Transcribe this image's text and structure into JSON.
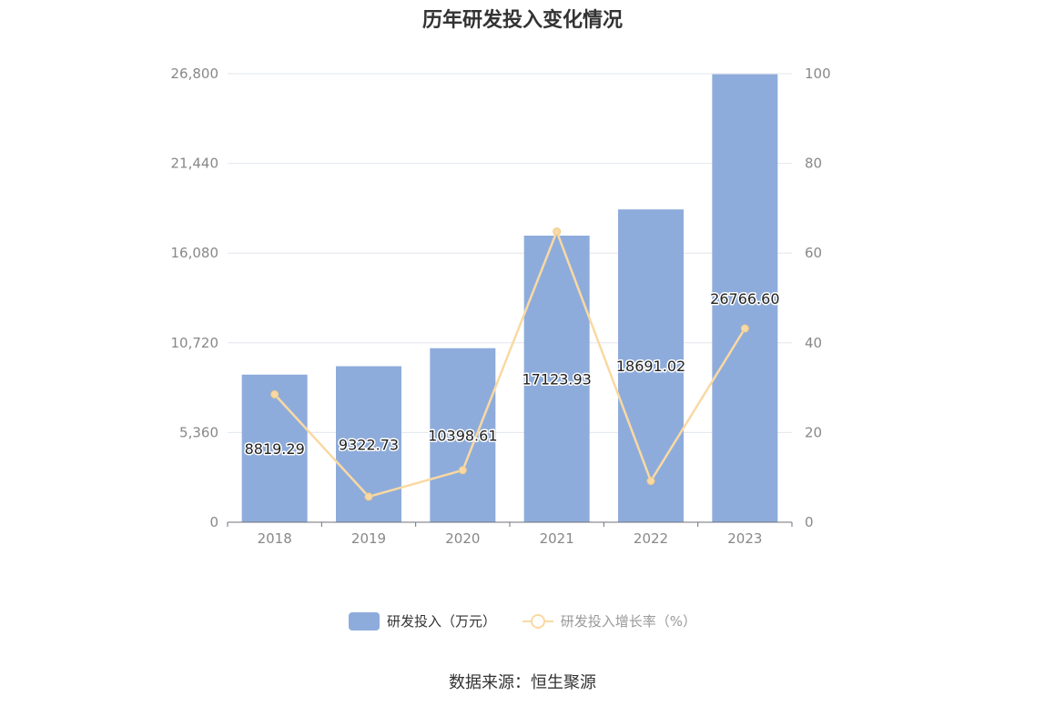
{
  "chart_data": {
    "type": "bar",
    "title": "历年研发投入变化情况",
    "categories": [
      "2018",
      "2019",
      "2020",
      "2021",
      "2022",
      "2023"
    ],
    "series": [
      {
        "name": "研发投入（万元）",
        "type": "bar",
        "axis": "left",
        "color": "#8eacdb",
        "values": [
          8819.29,
          9322.73,
          10398.61,
          17123.93,
          18691.02,
          26766.6
        ],
        "labels": [
          "8819.29",
          "9322.73",
          "10398.61",
          "17123.93",
          "18691.02",
          "26766.60"
        ]
      },
      {
        "name": "研发投入增长率（%）",
        "type": "line",
        "axis": "right",
        "color": "#f9d9a3",
        "values": [
          28.5,
          5.7,
          11.6,
          64.8,
          9.2,
          43.2
        ]
      }
    ],
    "y_left": {
      "ticks": [
        "0",
        "5,360",
        "10,720",
        "16,080",
        "21,440",
        "26,800"
      ],
      "ylim": [
        0,
        26800
      ]
    },
    "y_right": {
      "ticks": [
        "0",
        "20",
        "40",
        "60",
        "80",
        "100"
      ],
      "ylim": [
        0,
        100
      ]
    },
    "grid": true,
    "legend": "bottom-center"
  },
  "source": "数据来源：恒生聚源"
}
